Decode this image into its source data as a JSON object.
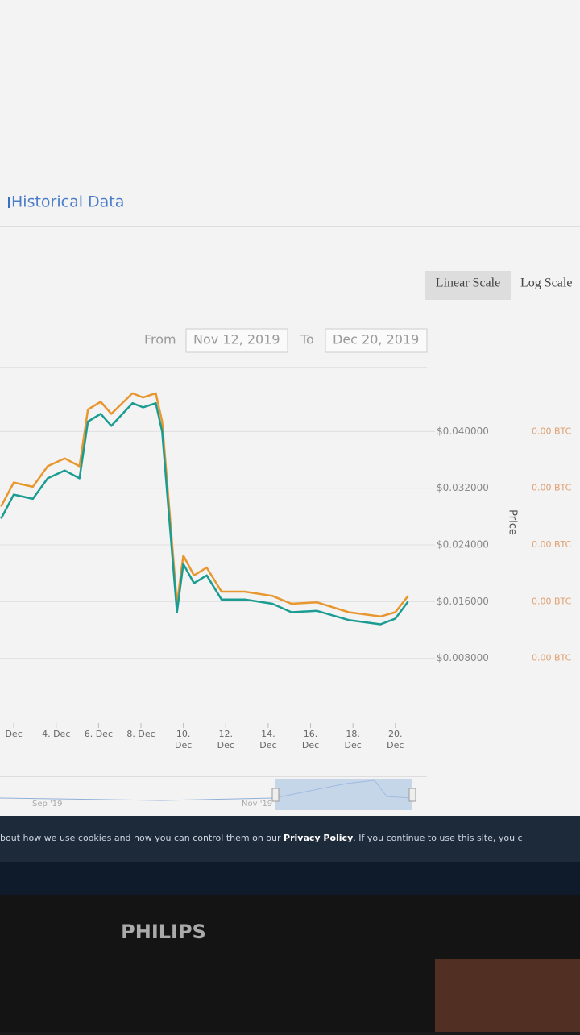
{
  "page": {
    "section_title": "Historical Data",
    "scale_buttons": [
      "Linear Scale",
      "Log Scale"
    ],
    "from_label": "From",
    "from_date": "Nov 12, 2019",
    "to_label": "To",
    "to_date": "Dec 20, 2019",
    "navigator_labels": [
      "Sep '19",
      "Nov '19"
    ],
    "cookie_text": "bout how we use cookies and how you can control them on our ",
    "cookie_link": "Privacy Policy",
    "cookie_text_after": ". If you continue to use this site, you c",
    "monitor_brand": "PHILIPS"
  },
  "chart_data": {
    "type": "line",
    "y_label": "Price",
    "x": [
      1.4,
      2.0,
      2.9,
      3.6,
      4.4,
      5.1,
      5.5,
      6.1,
      6.6,
      7.6,
      8.1,
      8.7,
      9.0,
      9.3,
      9.7,
      10.0,
      10.5,
      11.1,
      11.8,
      12.9,
      14.2,
      15.1,
      16.3,
      17.8,
      19.3,
      20.0,
      20.6
    ],
    "xlim": [
      1.35,
      21.3
    ],
    "xticks": [
      {
        "value": 2,
        "label": "Dec"
      },
      {
        "value": 4,
        "label": "4. Dec"
      },
      {
        "value": 6,
        "label": "6. Dec"
      },
      {
        "value": 8,
        "label": "8. Dec"
      },
      {
        "value": 10,
        "label": "10. Dec"
      },
      {
        "value": 12,
        "label": "12. Dec"
      },
      {
        "value": 14,
        "label": "14. Dec"
      },
      {
        "value": 16,
        "label": "16. Dec"
      },
      {
        "value": 18,
        "label": "18. Dec"
      },
      {
        "value": 20,
        "label": "20. Dec"
      }
    ],
    "ylim": [
      0,
      0.048
    ],
    "yticks": [
      {
        "value": 0.008,
        "label": "$0.008000"
      },
      {
        "value": 0.016,
        "label": "$0.016000"
      },
      {
        "value": 0.024,
        "label": "$0.024000"
      },
      {
        "value": 0.032,
        "label": "$0.032000"
      },
      {
        "value": 0.04,
        "label": "$0.040000"
      }
    ],
    "y2_labels": [
      "0.00 BTC",
      "0.00 BTC",
      "0.00 BTC",
      "0.00 BTC",
      "0.00 BTC"
    ],
    "grid": true,
    "series": [
      {
        "color": "#e8962e",
        "values": [
          0.0294,
          0.0328,
          0.0322,
          0.0351,
          0.0362,
          0.0351,
          0.0431,
          0.0442,
          0.0425,
          0.0454,
          0.0448,
          0.0454,
          0.0414,
          0.0305,
          0.0157,
          0.0225,
          0.0197,
          0.0208,
          0.0174,
          0.0174,
          0.0168,
          0.0157,
          0.0159,
          0.0145,
          0.0139,
          0.0145,
          0.0168
        ]
      },
      {
        "color": "#1a9c92",
        "values": [
          0.0277,
          0.0311,
          0.0305,
          0.0334,
          0.0345,
          0.0334,
          0.0414,
          0.0425,
          0.0408,
          0.044,
          0.0434,
          0.044,
          0.04,
          0.029,
          0.0145,
          0.0213,
          0.0186,
          0.0197,
          0.0163,
          0.0163,
          0.0157,
          0.0145,
          0.0147,
          0.0134,
          0.0128,
          0.0136,
          0.016
        ]
      }
    ]
  }
}
